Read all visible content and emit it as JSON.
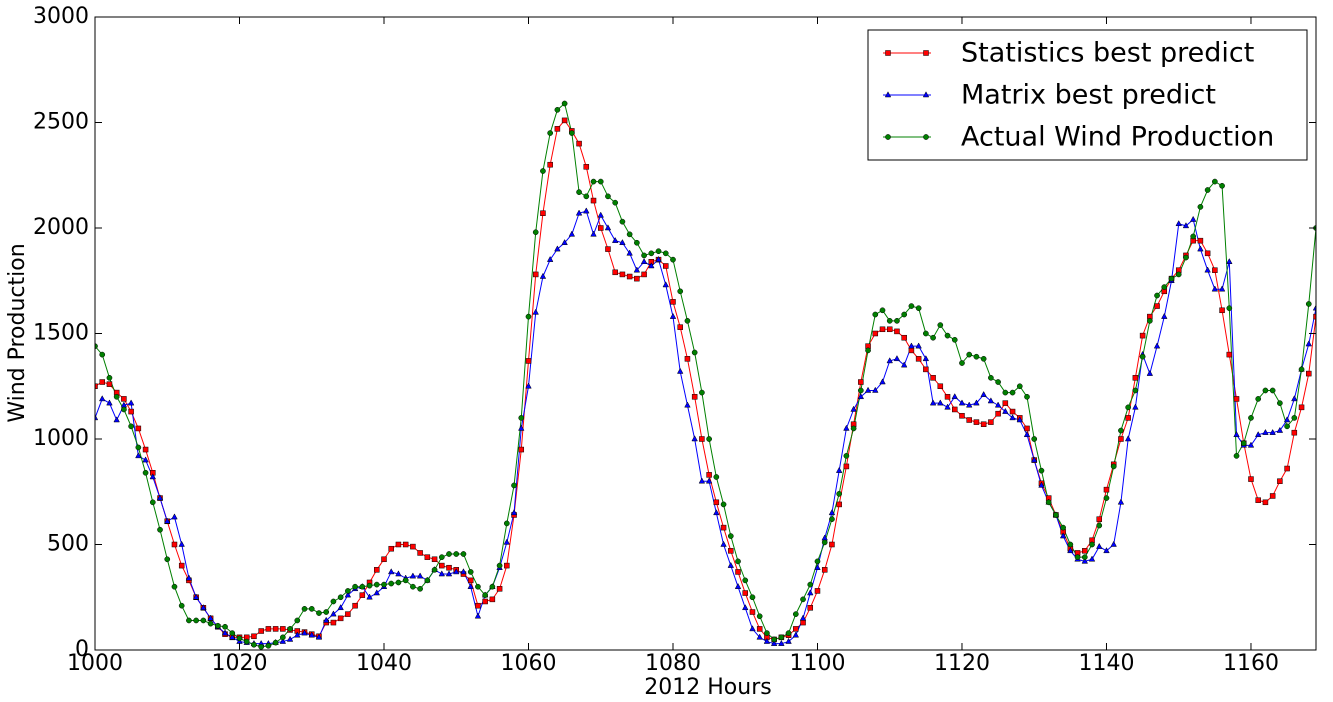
{
  "chart_data": {
    "type": "line",
    "xlabel": "2012 Hours",
    "ylabel": "Wind Production",
    "xlabel_color": "#0000ff",
    "ylabel_color": "#ff0000",
    "legend": "upper right",
    "grid": false,
    "xlim": [
      1000,
      1169
    ],
    "ylim": [
      0,
      3000
    ],
    "xticks": [
      1000,
      1020,
      1040,
      1060,
      1080,
      1100,
      1120,
      1140,
      1160
    ],
    "yticks": [
      0,
      500,
      1000,
      1500,
      2000,
      2500,
      3000
    ],
    "x": [
      1000,
      1001,
      1002,
      1003,
      1004,
      1005,
      1006,
      1007,
      1008,
      1009,
      1010,
      1011,
      1012,
      1013,
      1014,
      1015,
      1016,
      1017,
      1018,
      1019,
      1020,
      1021,
      1022,
      1023,
      1024,
      1025,
      1026,
      1027,
      1028,
      1029,
      1030,
      1031,
      1032,
      1033,
      1034,
      1035,
      1036,
      1037,
      1038,
      1039,
      1040,
      1041,
      1042,
      1043,
      1044,
      1045,
      1046,
      1047,
      1048,
      1049,
      1050,
      1051,
      1052,
      1053,
      1054,
      1055,
      1056,
      1057,
      1058,
      1059,
      1060,
      1061,
      1062,
      1063,
      1064,
      1065,
      1066,
      1067,
      1068,
      1069,
      1070,
      1071,
      1072,
      1073,
      1074,
      1075,
      1076,
      1077,
      1078,
      1079,
      1080,
      1081,
      1082,
      1083,
      1084,
      1085,
      1086,
      1087,
      1088,
      1089,
      1090,
      1091,
      1092,
      1093,
      1094,
      1095,
      1096,
      1097,
      1098,
      1099,
      1100,
      1101,
      1102,
      1103,
      1104,
      1105,
      1106,
      1107,
      1108,
      1109,
      1110,
      1111,
      1112,
      1113,
      1114,
      1115,
      1116,
      1117,
      1118,
      1119,
      1120,
      1121,
      1122,
      1123,
      1124,
      1125,
      1126,
      1127,
      1128,
      1129,
      1130,
      1131,
      1132,
      1133,
      1134,
      1135,
      1136,
      1137,
      1138,
      1139,
      1140,
      1141,
      1142,
      1143,
      1144,
      1145,
      1146,
      1147,
      1148,
      1149,
      1150,
      1151,
      1152,
      1153,
      1154,
      1155,
      1156,
      1157,
      1158,
      1159,
      1160,
      1161,
      1162,
      1163,
      1164,
      1165,
      1166,
      1167,
      1168,
      1169
    ],
    "series": [
      {
        "name": "Statistics best predict",
        "color": "#ff0000",
        "marker": "square",
        "values": [
          1250,
          1270,
          1260,
          1220,
          1190,
          1130,
          1050,
          950,
          840,
          720,
          610,
          500,
          400,
          330,
          250,
          200,
          150,
          110,
          75,
          60,
          60,
          60,
          65,
          90,
          100,
          100,
          100,
          95,
          90,
          85,
          75,
          65,
          130,
          130,
          150,
          170,
          210,
          260,
          320,
          380,
          430,
          480,
          500,
          500,
          490,
          460,
          440,
          430,
          400,
          390,
          380,
          360,
          330,
          210,
          230,
          240,
          290,
          400,
          640,
          950,
          1370,
          1780,
          2070,
          2300,
          2470,
          2510,
          2460,
          2400,
          2290,
          2130,
          2000,
          1900,
          1790,
          1780,
          1770,
          1760,
          1780,
          1840,
          1850,
          1820,
          1650,
          1530,
          1380,
          1200,
          1000,
          830,
          700,
          580,
          470,
          370,
          270,
          180,
          100,
          60,
          50,
          60,
          70,
          100,
          130,
          200,
          280,
          380,
          500,
          690,
          870,
          1070,
          1270,
          1440,
          1500,
          1520,
          1520,
          1510,
          1480,
          1420,
          1380,
          1330,
          1290,
          1250,
          1200,
          1140,
          1110,
          1090,
          1080,
          1070,
          1080,
          1120,
          1170,
          1130,
          1100,
          1050,
          900,
          790,
          720,
          640,
          560,
          480,
          460,
          470,
          520,
          620,
          760,
          880,
          1000,
          1100,
          1290,
          1490,
          1580,
          1630,
          1700,
          1760,
          1800,
          1870,
          1940,
          1940,
          1880,
          1800,
          1610,
          1400,
          1190,
          980,
          810,
          710,
          700,
          730,
          800,
          860,
          1030,
          1150,
          1310,
          1580
        ]
      },
      {
        "name": "Matrix best predict",
        "color": "#0000ff",
        "marker": "triangle",
        "values": [
          1100,
          1190,
          1170,
          1090,
          1160,
          1170,
          920,
          900,
          820,
          720,
          610,
          630,
          500,
          340,
          250,
          200,
          150,
          110,
          80,
          60,
          40,
          35,
          30,
          30,
          30,
          35,
          40,
          50,
          70,
          80,
          70,
          60,
          140,
          170,
          200,
          260,
          290,
          300,
          250,
          270,
          300,
          370,
          360,
          340,
          350,
          350,
          330,
          380,
          360,
          360,
          370,
          370,
          300,
          160,
          260,
          300,
          390,
          510,
          650,
          1050,
          1250,
          1600,
          1770,
          1850,
          1900,
          1930,
          1970,
          2070,
          2080,
          1970,
          2060,
          2000,
          1940,
          1930,
          1880,
          1800,
          1840,
          1820,
          1850,
          1730,
          1580,
          1320,
          1160,
          1000,
          800,
          800,
          650,
          500,
          400,
          300,
          200,
          100,
          60,
          40,
          30,
          30,
          40,
          70,
          150,
          270,
          390,
          530,
          650,
          850,
          1050,
          1140,
          1200,
          1230,
          1230,
          1270,
          1370,
          1380,
          1350,
          1440,
          1440,
          1380,
          1170,
          1170,
          1150,
          1200,
          1170,
          1160,
          1170,
          1210,
          1180,
          1160,
          1130,
          1100,
          1090,
          1020,
          900,
          780,
          700,
          640,
          540,
          470,
          430,
          420,
          430,
          490,
          470,
          500,
          700,
          1000,
          1150,
          1400,
          1310,
          1440,
          1580,
          1750,
          2020,
          2010,
          2040,
          1900,
          1800,
          1710,
          1710,
          1840,
          1020,
          970,
          970,
          1020,
          1030,
          1030,
          1040,
          1090,
          1190,
          1330,
          1450,
          1620
        ]
      },
      {
        "name": "Actual Wind Production",
        "color": "#008000",
        "marker": "circle",
        "values": [
          1440,
          1400,
          1290,
          1200,
          1140,
          1060,
          960,
          840,
          700,
          570,
          430,
          300,
          210,
          140,
          140,
          140,
          125,
          115,
          110,
          80,
          55,
          40,
          25,
          15,
          20,
          35,
          60,
          100,
          140,
          195,
          195,
          175,
          180,
          230,
          250,
          280,
          300,
          300,
          305,
          310,
          310,
          315,
          320,
          330,
          300,
          290,
          330,
          380,
          440,
          455,
          455,
          455,
          370,
          300,
          260,
          300,
          400,
          600,
          780,
          1100,
          1580,
          1980,
          2270,
          2450,
          2560,
          2590,
          2450,
          2170,
          2150,
          2220,
          2220,
          2150,
          2120,
          2030,
          1970,
          1930,
          1870,
          1880,
          1890,
          1880,
          1850,
          1700,
          1560,
          1410,
          1220,
          1000,
          820,
          690,
          540,
          420,
          330,
          250,
          160,
          80,
          50,
          60,
          80,
          170,
          240,
          310,
          420,
          510,
          620,
          740,
          920,
          1050,
          1230,
          1420,
          1590,
          1610,
          1560,
          1560,
          1590,
          1630,
          1620,
          1500,
          1480,
          1540,
          1490,
          1470,
          1360,
          1400,
          1390,
          1380,
          1290,
          1270,
          1220,
          1220,
          1250,
          1200,
          1000,
          850,
          700,
          640,
          580,
          500,
          440,
          440,
          500,
          590,
          720,
          870,
          1040,
          1150,
          1230,
          1390,
          1560,
          1680,
          1720,
          1760,
          1780,
          1860,
          1960,
          2100,
          2180,
          2220,
          2200,
          1620,
          920,
          980,
          1100,
          1190,
          1230,
          1230,
          1170,
          1060,
          1100,
          1330,
          1640,
          2000
        ]
      }
    ]
  }
}
